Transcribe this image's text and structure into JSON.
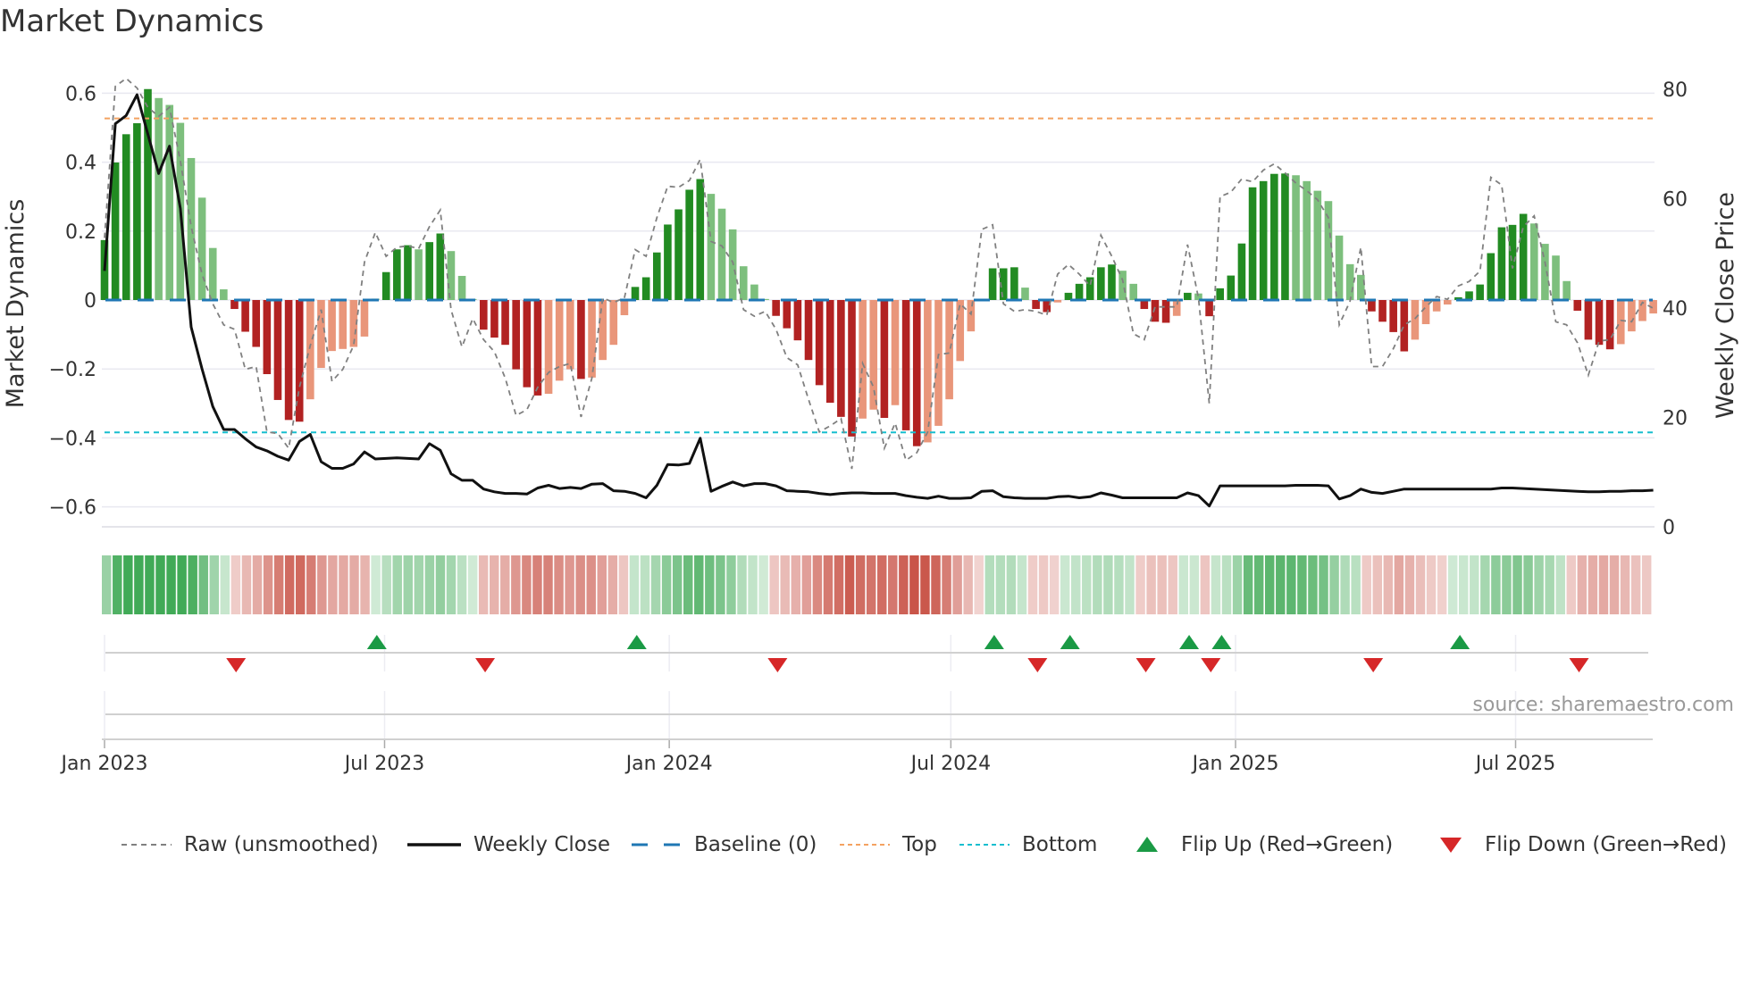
{
  "chart_data": {
    "type": "bar",
    "title": "Market Dynamics",
    "ylabel": "Market Dynamics",
    "ylabel_right": "Weekly Close Price",
    "ylim": [
      -0.658,
      0.658
    ],
    "ylim_right": [
      0,
      83
    ],
    "xlim": [
      "2022-12-30",
      "2025-09-27"
    ],
    "grid": true,
    "legend_placement": "bottom",
    "start_date": "2023-01-01",
    "interval_days": 7,
    "yticks": [
      -0.6,
      -0.4,
      -0.2,
      0,
      0.2,
      0.4,
      0.6
    ],
    "ytick_labels": [
      "−0.6",
      "−0.4",
      "−0.2",
      "0",
      "0.2",
      "0.4",
      "0.6"
    ],
    "yticks_right": [
      0,
      20,
      40,
      60,
      80
    ],
    "ytick_labels_right": [
      "0",
      "20",
      "40",
      "60",
      "80"
    ],
    "xticks": [
      "2023-01-01",
      "2023-07-01",
      "2024-01-01",
      "2024-07-01",
      "2025-01-01",
      "2025-07-01"
    ],
    "xtick_labels": [
      "Jan 2023",
      "Jul 2023",
      "Jan 2024",
      "Jul 2024",
      "Jan 2025",
      "Jul 2025"
    ],
    "top_level": 0.527,
    "bottom_level": -0.384,
    "baseline": 0,
    "series": [
      {
        "name": "Market Dynamics (smoothed)",
        "values": [
          0.174,
          0.399,
          0.481,
          0.513,
          0.612,
          0.586,
          0.566,
          0.514,
          0.412,
          0.297,
          0.151,
          0.031,
          -0.026,
          -0.092,
          -0.136,
          -0.215,
          -0.29,
          -0.348,
          -0.353,
          -0.288,
          -0.197,
          -0.148,
          -0.142,
          -0.136,
          -0.106,
          0.004,
          0.081,
          0.147,
          0.159,
          0.147,
          0.168,
          0.193,
          0.142,
          0.07,
          0.003,
          -0.086,
          -0.109,
          -0.13,
          -0.201,
          -0.253,
          -0.277,
          -0.272,
          -0.234,
          -0.201,
          -0.229,
          -0.225,
          -0.174,
          -0.13,
          -0.044,
          0.038,
          0.066,
          0.138,
          0.219,
          0.263,
          0.32,
          0.351,
          0.308,
          0.265,
          0.205,
          0.098,
          0.045,
          0.003,
          -0.046,
          -0.082,
          -0.117,
          -0.174,
          -0.247,
          -0.298,
          -0.339,
          -0.396,
          -0.344,
          -0.318,
          -0.342,
          -0.305,
          -0.378,
          -0.424,
          -0.413,
          -0.365,
          -0.288,
          -0.177,
          -0.091,
          -0.002,
          0.092,
          0.092,
          0.095,
          0.036,
          -0.026,
          -0.035,
          -0.007,
          0.021,
          0.047,
          0.066,
          0.095,
          0.103,
          0.085,
          0.047,
          -0.026,
          -0.063,
          -0.066,
          -0.046,
          0.021,
          0.019,
          -0.047,
          0.034,
          0.071,
          0.164,
          0.327,
          0.345,
          0.366,
          0.367,
          0.362,
          0.345,
          0.317,
          0.287,
          0.187,
          0.104,
          0.073,
          -0.033,
          -0.063,
          -0.093,
          -0.149,
          -0.115,
          -0.07,
          -0.033,
          -0.013,
          0.008,
          0.025,
          0.045,
          0.136,
          0.211,
          0.218,
          0.25,
          0.222,
          0.163,
          0.129,
          0.055,
          -0.031,
          -0.115,
          -0.13,
          -0.143,
          -0.128,
          -0.091,
          -0.061,
          -0.039
        ]
      },
      {
        "name": "Raw (unsmoothed)",
        "values": [
          0.18,
          0.62,
          0.643,
          0.615,
          0.559,
          0.533,
          0.559,
          0.403,
          0.213,
          0.075,
          -0.011,
          -0.072,
          -0.085,
          -0.201,
          -0.193,
          -0.383,
          -0.387,
          -0.43,
          -0.253,
          -0.132,
          -0.028,
          -0.236,
          -0.201,
          -0.132,
          0.11,
          0.196,
          0.127,
          0.153,
          0.157,
          0.149,
          0.213,
          0.261,
          -0.028,
          -0.136,
          -0.054,
          -0.115,
          -0.15,
          -0.227,
          -0.335,
          -0.318,
          -0.253,
          -0.21,
          -0.193,
          -0.184,
          -0.339,
          -0.227,
          0.006,
          -0.007,
          0.006,
          0.146,
          0.127,
          0.239,
          0.33,
          0.327,
          0.347,
          0.408,
          0.17,
          0.157,
          0.11,
          -0.028,
          -0.047,
          -0.033,
          -0.085,
          -0.167,
          -0.188,
          -0.288,
          -0.383,
          -0.365,
          -0.344,
          -0.49,
          -0.184,
          -0.253,
          -0.43,
          -0.357,
          -0.465,
          -0.443,
          -0.383,
          -0.158,
          -0.154,
          -0.011,
          -0.041,
          0.205,
          0.218,
          -0.011,
          -0.033,
          -0.028,
          -0.033,
          -0.044,
          0.075,
          0.103,
          0.075,
          0.041,
          0.188,
          0.127,
          0.058,
          -0.098,
          -0.115,
          -0.02,
          -0.02,
          -0.02,
          0.161,
          0.006,
          -0.3,
          0.3,
          0.313,
          0.351,
          0.343,
          0.377,
          0.395,
          0.369,
          0.339,
          0.317,
          0.291,
          0.239,
          -0.072,
          -0.003,
          0.153,
          -0.193,
          -0.193,
          -0.141,
          -0.072,
          -0.054,
          -0.02,
          0.01,
          0.002,
          0.041,
          0.054,
          0.084,
          0.356,
          0.334,
          0.092,
          0.213,
          0.244,
          0.11,
          -0.063,
          -0.072,
          -0.124,
          -0.218,
          -0.119,
          -0.115,
          -0.059,
          -0.063,
          -0.007,
          -0.024
        ]
      },
      {
        "name": "Weekly Close",
        "axis": "right",
        "values": [
          46.8,
          73.7,
          75.2,
          79,
          71.8,
          64.6,
          69.6,
          58.2,
          36.5,
          28.9,
          22,
          17.8,
          17.8,
          16.1,
          14.6,
          13.9,
          12.9,
          12.2,
          15.6,
          16.9,
          11.9,
          10.7,
          10.7,
          11.5,
          13.7,
          12.4,
          12.5,
          12.6,
          12.5,
          12.4,
          15.2,
          14,
          9.7,
          8.5,
          8.5,
          6.9,
          6.4,
          6.1,
          6.1,
          6.0,
          7.1,
          7.6,
          7.0,
          7.2,
          7.0,
          7.8,
          7.9,
          6.6,
          6.5,
          6.1,
          5.3,
          7.6,
          11.4,
          11.3,
          11.6,
          16.2,
          6.5,
          7.4,
          8.2,
          7.5,
          7.9,
          7.9,
          7.5,
          6.6,
          6.5,
          6.4,
          6.1,
          5.9,
          6.1,
          6.2,
          6.2,
          6.1,
          6.1,
          6.1,
          5.7,
          5.4,
          5.2,
          5.6,
          5.2,
          5.2,
          5.3,
          6.5,
          6.6,
          5.5,
          5.3,
          5.2,
          5.2,
          5.2,
          5.5,
          5.6,
          5.3,
          5.5,
          6.2,
          5.8,
          5.3,
          5.3,
          5.3,
          5.3,
          5.3,
          5.3,
          6.2,
          5.7,
          3.8,
          7.5,
          7.5,
          7.5,
          7.5,
          7.5,
          7.5,
          7.5,
          7.6,
          7.6,
          7.6,
          7.5,
          5.1,
          5.7,
          6.9,
          6.3,
          6.1,
          6.5,
          6.9,
          6.9,
          6.9,
          6.9,
          6.9,
          6.9,
          6.9,
          6.9,
          6.9,
          7.1,
          7.1,
          7.0,
          6.9,
          6.8,
          6.7,
          6.6,
          6.5,
          6.4,
          6.4,
          6.5,
          6.5,
          6.6,
          6.6,
          6.7
        ]
      }
    ],
    "flip_up_dates": [
      "2023-06-26",
      "2023-12-11",
      "2024-07-29",
      "2024-09-16",
      "2024-12-02",
      "2024-12-23",
      "2025-05-26"
    ],
    "flip_down_dates": [
      "2023-03-27",
      "2023-09-04",
      "2024-03-11",
      "2024-08-26",
      "2024-11-04",
      "2024-12-16",
      "2025-03-31",
      "2025-08-11"
    ],
    "legend": [
      "Raw (unsmoothed)",
      "Weekly Close",
      "Baseline (0)",
      "Top",
      "Bottom",
      "Flip Up (Red→Green)",
      "Flip Down (Green→Red)"
    ],
    "annotation": "source: sharemaestro.com"
  },
  "colors": {
    "pos_rising": "#228b22",
    "pos_falling": "#7dbf7d",
    "neg_falling": "#b22222",
    "neg_rising": "#e9967a",
    "raw": "#808080",
    "close": "#111111",
    "baseline": "#1f77b4",
    "top": "#f4a261",
    "bottom": "#17becf",
    "flip_up": "#1a9a45",
    "flip_down": "#d62728",
    "heat_pos": "#2ca044",
    "heat_neg": "#c0392b"
  }
}
